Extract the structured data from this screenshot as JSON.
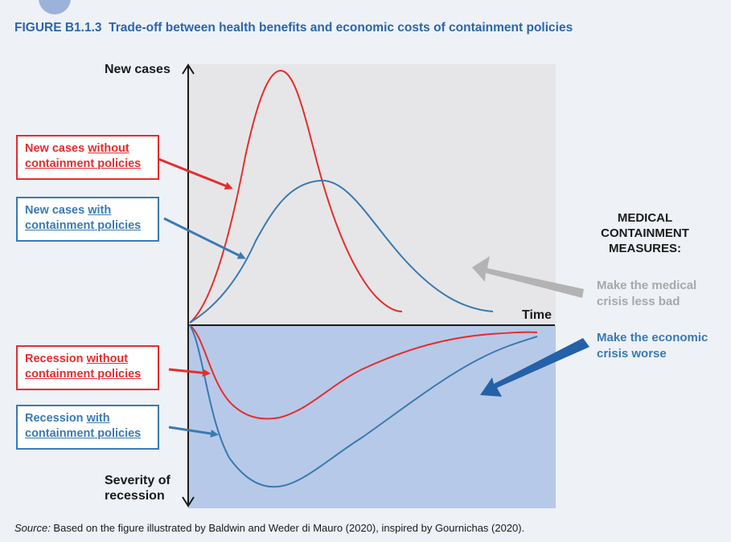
{
  "figure": {
    "label": "FIGURE B1.1.3",
    "title": "Trade-off between health benefits and economic costs of containment policies"
  },
  "axes": {
    "y_top_label": "New cases",
    "x_label": "Time",
    "y_bottom_label_line1": "Severity of",
    "y_bottom_label_line2": "recession"
  },
  "boxes": {
    "cases_without": {
      "prefix": "New cases ",
      "underlined": "without",
      "line2": "containment policies"
    },
    "cases_with": {
      "prefix": "New cases ",
      "underlined": "with",
      "line2": "containment policies"
    },
    "recession_without": {
      "prefix": "Recession ",
      "underlined": "without",
      "line2": "containment policies"
    },
    "recession_with": {
      "prefix": "Recession ",
      "underlined": "with",
      "line2": "containment policies"
    }
  },
  "side_panel": {
    "heading_line1": "MEDICAL",
    "heading_line2": "CONTAINMENT",
    "heading_line3": "MEASURES:",
    "medical_line1": "Make the medical",
    "medical_line2": "crisis less bad",
    "economic_line1": "Make the economic",
    "economic_line2": "crisis worse"
  },
  "source": {
    "label": "Source:",
    "text": " Based on the figure illustrated by Baldwin and Weder di Mauro (2020), inspired by Gournichas (2020)."
  },
  "colors": {
    "red": "#e52d2d",
    "blue": "#3a7ab0",
    "title_blue": "#2a66a8",
    "top_panel": "#e6e6e8",
    "bottom_panel": "#b7c9e8",
    "grey_arrow": "#b3b3b3",
    "dark_blue_arrow": "#2461a8"
  }
}
